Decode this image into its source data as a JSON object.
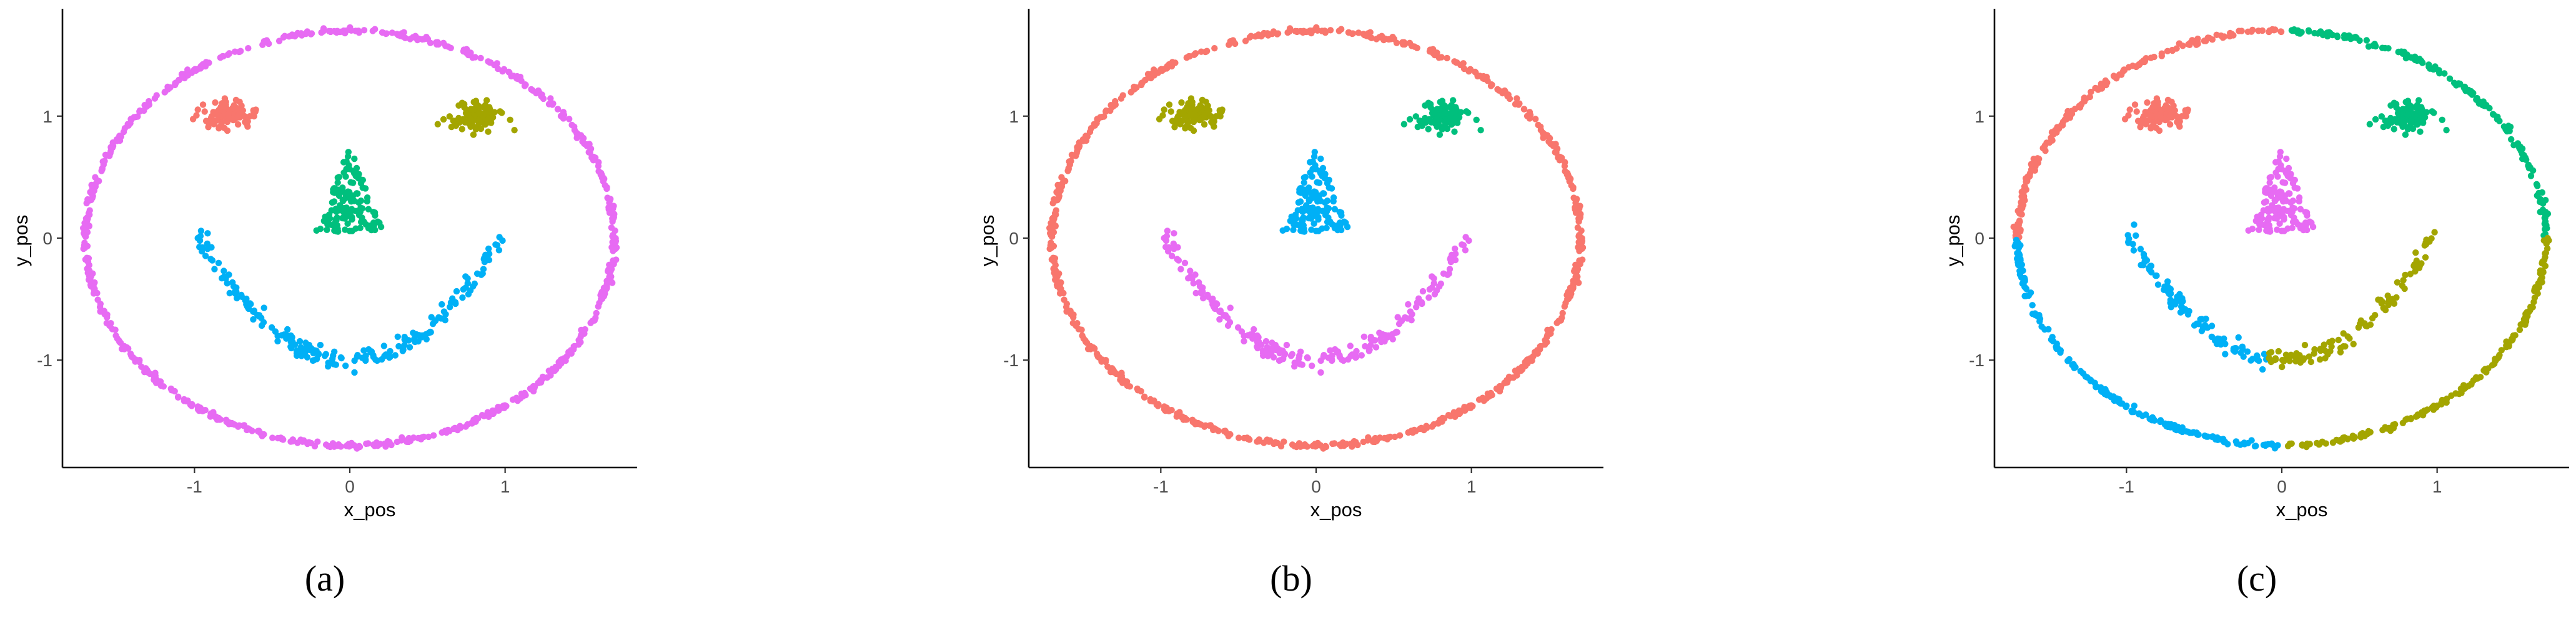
{
  "figure": {
    "panels": [
      {
        "caption": "(a)"
      },
      {
        "caption": "(b)"
      },
      {
        "caption": "(c)"
      }
    ]
  },
  "chart_data": [
    {
      "type": "scatter",
      "caption": "(a)",
      "xlabel": "x_pos",
      "ylabel": "y_pos",
      "xlim": [
        -1.85,
        1.85
      ],
      "ylim": [
        -1.88,
        1.88
      ],
      "xticks": [
        -1,
        0,
        1
      ],
      "yticks": [
        -1,
        0,
        1
      ],
      "grid": false,
      "legend": "none",
      "series": [
        {
          "color": "#F8766D",
          "shape": "left eye cluster",
          "center": [
            -0.8,
            1.0
          ],
          "spread": [
            0.12,
            0.08
          ],
          "count": 100
        },
        {
          "color": "#A3A500",
          "shape": "right eye cluster",
          "center": [
            0.8,
            1.0
          ],
          "spread": [
            0.12,
            0.08
          ],
          "count": 100
        },
        {
          "color": "#00BF7D",
          "shape": "nose triangle",
          "y_range": [
            0.05,
            0.75
          ],
          "half_width_at_base": 0.22,
          "count": 130
        },
        {
          "color": "#00B0F6",
          "shape": "mouth arc",
          "x_range": [
            -1.0,
            1.0
          ],
          "y_at_ends": 0.05,
          "y_at_center": -1.0,
          "count": 200
        },
        {
          "color": "#E76BF3",
          "shape": "face ellipse",
          "x_radius": 1.7,
          "y_radius": 1.7,
          "count": 700
        }
      ]
    },
    {
      "type": "scatter",
      "caption": "(b)",
      "xlabel": "x_pos",
      "ylabel": "y_pos",
      "xlim": [
        -1.85,
        1.85
      ],
      "ylim": [
        -1.88,
        1.88
      ],
      "xticks": [
        -1,
        0,
        1
      ],
      "yticks": [
        -1,
        0,
        1
      ],
      "grid": false,
      "legend": "none",
      "series": [
        {
          "color": "#A3A500",
          "shape": "left eye cluster",
          "center": [
            -0.8,
            1.0
          ],
          "spread": [
            0.12,
            0.08
          ],
          "count": 100
        },
        {
          "color": "#00BF7D",
          "shape": "right eye cluster",
          "center": [
            0.8,
            1.0
          ],
          "spread": [
            0.12,
            0.08
          ],
          "count": 100
        },
        {
          "color": "#00B0F6",
          "shape": "nose triangle",
          "y_range": [
            0.05,
            0.75
          ],
          "half_width_at_base": 0.22,
          "count": 130
        },
        {
          "color": "#E76BF3",
          "shape": "mouth arc",
          "x_range": [
            -1.0,
            1.0
          ],
          "y_at_ends": 0.05,
          "y_at_center": -1.0,
          "count": 200
        },
        {
          "color": "#F8766D",
          "shape": "face ellipse",
          "x_radius": 1.7,
          "y_radius": 1.7,
          "count": 700
        }
      ]
    },
    {
      "type": "scatter",
      "caption": "(c)",
      "xlabel": "x_pos",
      "ylabel": "y_pos",
      "xlim": [
        -1.85,
        1.85
      ],
      "ylim": [
        -1.88,
        1.88
      ],
      "xticks": [
        -1,
        0,
        1
      ],
      "yticks": [
        -1,
        0,
        1
      ],
      "grid": false,
      "legend": "none",
      "series": [
        {
          "color": "#F8766D",
          "shape": "left eye cluster",
          "center": [
            -0.8,
            1.0
          ],
          "spread": [
            0.12,
            0.08
          ],
          "count": 100
        },
        {
          "color": "#00BF7D",
          "shape": "right eye cluster",
          "center": [
            0.8,
            1.0
          ],
          "spread": [
            0.12,
            0.08
          ],
          "count": 100
        },
        {
          "color": "#E76BF3",
          "shape": "nose triangle",
          "y_range": [
            0.05,
            0.75
          ],
          "half_width_at_base": 0.22,
          "count": 130
        },
        {
          "color": "#00B0F6",
          "shape": "mouth arc, left part",
          "x_range": [
            -1.0,
            -0.1
          ],
          "y_at_ends": 0.05,
          "y_at_center": -1.0,
          "count": 100
        },
        {
          "color": "#A3A500",
          "shape": "mouth arc, right part",
          "x_range": [
            -0.1,
            1.0
          ],
          "y_at_ends": 0.05,
          "y_at_center": -1.0,
          "count": 100
        },
        {
          "color": "#F8766D",
          "shape": "face ellipse, upper-left quadrant",
          "x_radius": 1.7,
          "y_radius": 1.7,
          "count": 175
        },
        {
          "color": "#00BF7D",
          "shape": "face ellipse, upper-right quadrant",
          "x_radius": 1.7,
          "y_radius": 1.7,
          "count": 175
        },
        {
          "color": "#00B0F6",
          "shape": "face ellipse, lower-left quadrant",
          "x_radius": 1.7,
          "y_radius": 1.7,
          "count": 175
        },
        {
          "color": "#A3A500",
          "shape": "face ellipse, lower-right quadrant",
          "x_radius": 1.7,
          "y_radius": 1.7,
          "count": 175
        }
      ]
    }
  ]
}
